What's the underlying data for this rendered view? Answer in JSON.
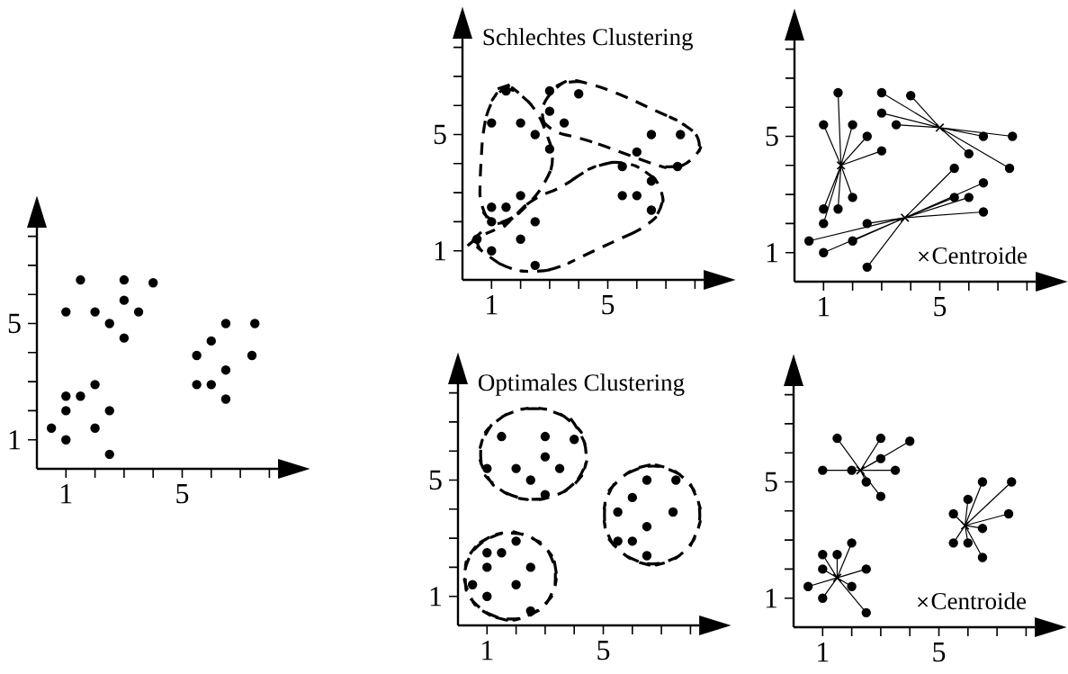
{
  "chart_data": [
    {
      "type": "scatter",
      "xlim": [
        0,
        8.3
      ],
      "ylim": [
        0,
        8.3
      ],
      "xticks": [
        1,
        {
          "value": 2,
          "label": null
        },
        {
          "value": 3,
          "label": null
        },
        {
          "value": 4,
          "label": null
        },
        5,
        {
          "value": 6,
          "label": null
        },
        {
          "value": 7,
          "label": null
        },
        {
          "value": 8,
          "label": null
        }
      ],
      "yticks": [
        1,
        {
          "value": 2,
          "label": null
        },
        {
          "value": 3,
          "label": null
        },
        {
          "value": 4,
          "label": null
        },
        5,
        {
          "value": 6,
          "label": null
        },
        {
          "value": 7,
          "label": null
        },
        {
          "value": 8,
          "label": null
        }
      ],
      "series": [
        {
          "marker": "circle",
          "color": "#000000",
          "x": [
            1.5,
            3,
            4,
            1,
            2,
            3,
            3.5,
            2.5,
            3,
            1,
            1.5,
            2,
            1,
            2.5,
            0.5,
            2,
            1,
            2.5,
            6.5,
            7.5,
            6,
            5.5,
            7.4,
            6.5,
            5.5,
            6,
            6.5
          ],
          "values": [
            6.5,
            6.5,
            6.4,
            5.4,
            5.4,
            5.8,
            5.4,
            5,
            4.5,
            2.5,
            2.5,
            2.9,
            2,
            2,
            1.4,
            1.4,
            1,
            0.5,
            5,
            5,
            4.4,
            3.9,
            3.9,
            3.4,
            2.9,
            2.9,
            2.4
          ]
        }
      ]
    },
    {
      "type": "scatter",
      "title": "Schlechtes Clustering",
      "xlim": [
        0,
        8.3
      ],
      "ylim": [
        0,
        8.3
      ],
      "xticks": [
        1,
        {
          "value": 2,
          "label": null
        },
        {
          "value": 3,
          "label": null
        },
        {
          "value": 4,
          "label": null
        },
        5,
        {
          "value": 6,
          "label": null
        },
        {
          "value": 7,
          "label": null
        },
        {
          "value": 8,
          "label": null
        }
      ],
      "yticks": [
        1,
        {
          "value": 2,
          "label": null
        },
        {
          "value": 3,
          "label": null
        },
        {
          "value": 4,
          "label": null
        },
        5,
        {
          "value": 6,
          "label": null
        },
        {
          "value": 7,
          "label": null
        },
        {
          "value": 8,
          "label": null
        }
      ],
      "series": [
        {
          "marker": "circle",
          "color": "#000000",
          "x": [
            1.5,
            3,
            4,
            1,
            2,
            3,
            3.5,
            2.5,
            3,
            1,
            1.5,
            2,
            1,
            2.5,
            0.5,
            2,
            1,
            2.5,
            6.5,
            7.5,
            6,
            5.5,
            7.4,
            6.5,
            5.5,
            6,
            6.5
          ],
          "values": [
            6.5,
            6.5,
            6.4,
            5.4,
            5.4,
            5.8,
            5.4,
            5,
            4.5,
            2.5,
            2.5,
            2.9,
            2,
            2,
            1.4,
            1.4,
            1,
            0.5,
            5,
            5,
            4.4,
            3.9,
            3.9,
            3.4,
            2.9,
            2.9,
            2.4
          ]
        }
      ]
    },
    {
      "type": "scatter",
      "legend": "bottom right",
      "xlim": [
        0,
        8.3
      ],
      "ylim": [
        0,
        8.3
      ],
      "xticks": [
        1,
        {
          "value": 2,
          "label": null
        },
        {
          "value": 3,
          "label": null
        },
        {
          "value": 4,
          "label": null
        },
        5,
        {
          "value": 6,
          "label": null
        },
        {
          "value": 7,
          "label": null
        },
        {
          "value": 8,
          "label": null
        }
      ],
      "yticks": [
        1,
        {
          "value": 2,
          "label": null
        },
        {
          "value": 3,
          "label": null
        },
        {
          "value": 4,
          "label": null
        },
        5,
        {
          "value": 6,
          "label": null
        },
        {
          "value": 7,
          "label": null
        },
        {
          "value": 8,
          "label": null
        }
      ],
      "series": [
        {
          "type": "line",
          "line_style": "solid",
          "color": "#000000",
          "x": [
            1.6,
            1.5,
            1.6,
            1,
            1.6,
            2,
            1.6,
            2.5,
            1.6,
            3,
            1.6,
            1,
            1.6,
            1.5,
            1.6,
            2,
            1.6,
            1
          ],
          "values": [
            4,
            6.5,
            4,
            5.4,
            4,
            5.4,
            4,
            5,
            4,
            4.5,
            4,
            2.5,
            4,
            2.5,
            4,
            2.9,
            4,
            2
          ]
        },
        {
          "type": "line",
          "line_style": "solid",
          "color": "#000000",
          "x": [
            3.8,
            5.5,
            3.8,
            6.5,
            3.8,
            6,
            3.8,
            6.5,
            3.8,
            5.5,
            3.8,
            2.5,
            3.8,
            0.5,
            3.8,
            2,
            3.8,
            1,
            3.8,
            2.5
          ],
          "values": [
            2.2,
            3.9,
            2.2,
            3.4,
            2.2,
            2.9,
            2.2,
            2.4,
            2.2,
            2.9,
            2.2,
            2,
            2.2,
            1.4,
            2.2,
            1.4,
            2.2,
            1,
            2.2,
            0.5
          ]
        },
        {
          "type": "line",
          "line_style": "solid",
          "color": "#000000",
          "x": [
            5,
            3,
            5,
            4,
            5,
            3,
            5,
            3.5,
            5,
            6.5,
            5,
            7.5,
            5,
            6,
            5,
            7.4
          ],
          "values": [
            5.3,
            6.5,
            5.3,
            6.4,
            5.3,
            5.8,
            5.3,
            5.4,
            5.3,
            5,
            5.3,
            5,
            5.3,
            4.4,
            5.3,
            3.9
          ]
        },
        {
          "marker": "circle",
          "color": "#000000",
          "x": [
            1.5,
            3,
            4,
            1,
            2,
            3,
            3.5,
            2.5,
            3,
            1,
            1.5,
            2,
            1,
            2.5,
            0.5,
            2,
            1,
            2.5,
            6.5,
            7.5,
            6,
            5.5,
            7.4,
            6.5,
            5.5,
            6,
            6.5
          ],
          "values": [
            6.5,
            6.5,
            6.4,
            5.4,
            5.4,
            5.8,
            5.4,
            5,
            4.5,
            2.5,
            2.5,
            2.9,
            2,
            2,
            1.4,
            1.4,
            1,
            0.5,
            5,
            5,
            4.4,
            3.9,
            3.9,
            3.4,
            2.9,
            2.9,
            2.4
          ]
        },
        {
          "marker": "cross",
          "name": "Centroide",
          "color": "#000000",
          "x": [
            1.6,
            3.8,
            5
          ],
          "values": [
            4,
            2.2,
            5.3
          ]
        }
      ]
    },
    {
      "type": "scatter",
      "title": "Optimales Clustering",
      "xlim": [
        0,
        8.3
      ],
      "ylim": [
        0,
        8.3
      ],
      "xticks": [
        1,
        {
          "value": 2,
          "label": null
        },
        {
          "value": 3,
          "label": null
        },
        {
          "value": 4,
          "label": null
        },
        5,
        {
          "value": 6,
          "label": null
        },
        {
          "value": 7,
          "label": null
        },
        {
          "value": 8,
          "label": null
        }
      ],
      "yticks": [
        1,
        {
          "value": 2,
          "label": null
        },
        {
          "value": 3,
          "label": null
        },
        {
          "value": 4,
          "label": null
        },
        5,
        {
          "value": 6,
          "label": null
        },
        {
          "value": 7,
          "label": null
        },
        {
          "value": 8,
          "label": null
        }
      ],
      "series": [
        {
          "marker": "circle",
          "color": "#000000",
          "x": [
            1.5,
            3,
            4,
            1,
            2,
            3,
            3.5,
            2.5,
            3,
            1,
            1.5,
            2,
            1,
            2.5,
            0.5,
            2,
            1,
            2.5,
            6.5,
            7.5,
            6,
            5.5,
            7.4,
            6.5,
            5.5,
            6,
            6.5
          ],
          "values": [
            6.5,
            6.5,
            6.4,
            5.4,
            5.4,
            5.8,
            5.4,
            5,
            4.5,
            2.5,
            2.5,
            2.9,
            2,
            2,
            1.4,
            1.4,
            1,
            0.5,
            5,
            5,
            4.4,
            3.9,
            3.9,
            3.4,
            2.9,
            2.9,
            2.4
          ]
        }
      ]
    },
    {
      "type": "scatter",
      "legend": "bottom right",
      "xlim": [
        0,
        8.3
      ],
      "ylim": [
        0,
        8.3
      ],
      "xticks": [
        1,
        {
          "value": 2,
          "label": null
        },
        {
          "value": 3,
          "label": null
        },
        {
          "value": 4,
          "label": null
        },
        5,
        {
          "value": 6,
          "label": null
        },
        {
          "value": 7,
          "label": null
        },
        {
          "value": 8,
          "label": null
        }
      ],
      "yticks": [
        1,
        {
          "value": 2,
          "label": null
        },
        {
          "value": 3,
          "label": null
        },
        {
          "value": 4,
          "label": null
        },
        5,
        {
          "value": 6,
          "label": null
        },
        {
          "value": 7,
          "label": null
        },
        {
          "value": 8,
          "label": null
        }
      ],
      "series": [
        {
          "type": "line",
          "line_style": "solid",
          "color": "#000000",
          "x": [
            2.3,
            1.5,
            2.3,
            3,
            2.3,
            4,
            2.3,
            1,
            2.3,
            2,
            2.3,
            3,
            2.3,
            3.5,
            2.3,
            2.5,
            2.3,
            3
          ],
          "values": [
            5.4,
            6.5,
            5.4,
            6.5,
            5.4,
            6.4,
            5.4,
            5.4,
            5.4,
            5.4,
            5.4,
            5.8,
            5.4,
            5.4,
            5.4,
            5,
            5.4,
            4.5
          ]
        },
        {
          "type": "line",
          "line_style": "solid",
          "color": "#000000",
          "x": [
            5.9,
            6.5,
            5.9,
            7.5,
            5.9,
            6,
            5.9,
            5.5,
            5.9,
            7.4,
            5.9,
            6.5,
            5.9,
            5.5,
            5.9,
            6,
            5.9,
            6.5
          ],
          "values": [
            3.5,
            5,
            3.5,
            5,
            3.5,
            4.4,
            3.5,
            3.9,
            3.5,
            3.9,
            3.5,
            3.4,
            3.5,
            2.9,
            3.5,
            2.9,
            3.5,
            2.4
          ]
        },
        {
          "type": "line",
          "line_style": "solid",
          "color": "#000000",
          "x": [
            1.5,
            1,
            1.5,
            1.5,
            1.5,
            2,
            1.5,
            1,
            1.5,
            2.5,
            1.5,
            0.5,
            1.5,
            2,
            1.5,
            1,
            1.5,
            2.5
          ],
          "values": [
            1.7,
            2.5,
            1.7,
            2.5,
            1.7,
            2.9,
            1.7,
            2,
            1.7,
            2,
            1.7,
            1.4,
            1.7,
            1.4,
            1.7,
            1,
            1.7,
            0.5
          ]
        },
        {
          "marker": "circle",
          "color": "#000000",
          "x": [
            1.5,
            3,
            4,
            1,
            2,
            3,
            3.5,
            2.5,
            3,
            1,
            1.5,
            2,
            1,
            2.5,
            0.5,
            2,
            1,
            2.5,
            6.5,
            7.5,
            6,
            5.5,
            7.4,
            6.5,
            5.5,
            6,
            6.5
          ],
          "values": [
            6.5,
            6.5,
            6.4,
            5.4,
            5.4,
            5.8,
            5.4,
            5,
            4.5,
            2.5,
            2.5,
            2.9,
            2,
            2,
            1.4,
            1.4,
            1,
            0.5,
            5,
            5,
            4.4,
            3.9,
            3.9,
            3.4,
            2.9,
            2.9,
            2.4
          ]
        },
        {
          "marker": "cross",
          "name": "Centroide",
          "color": "#000000",
          "x": [
            2.3,
            5.9,
            1.5
          ],
          "values": [
            5.4,
            3.5,
            1.7
          ]
        }
      ]
    }
  ]
}
